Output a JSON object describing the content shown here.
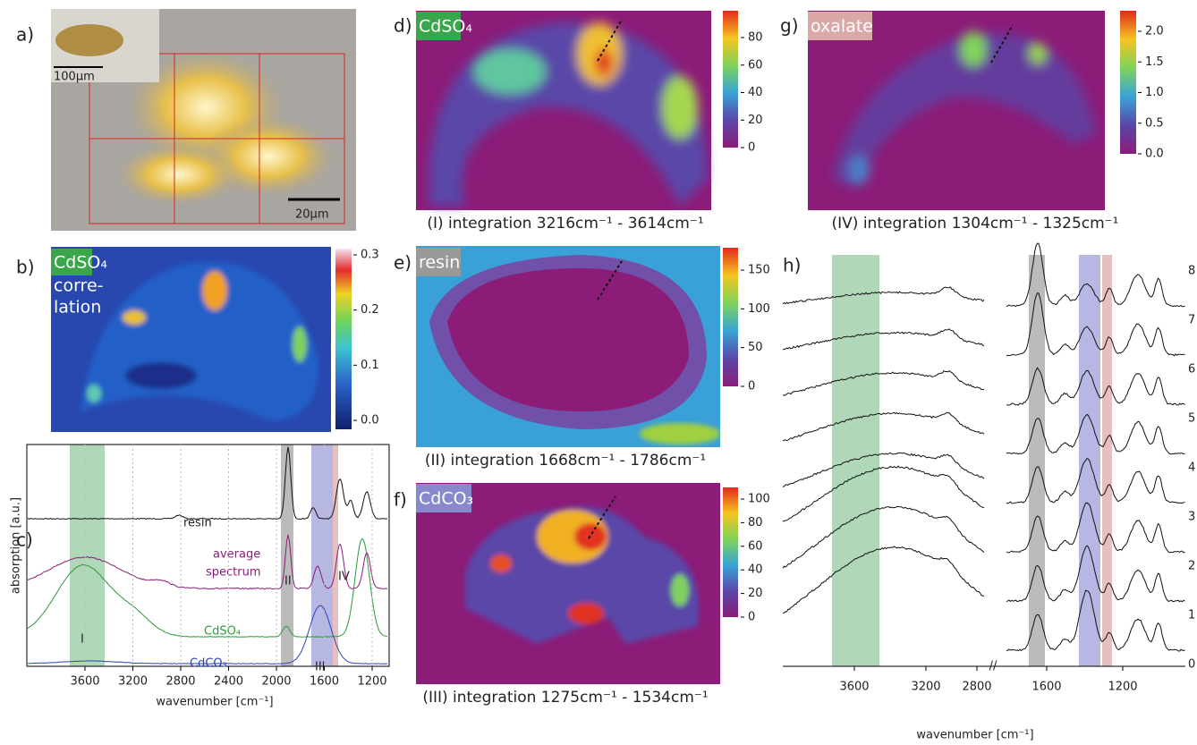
{
  "figure": {
    "a": {
      "label": "a)",
      "inset_scale": "100µm",
      "scale": "20µm"
    },
    "b": {
      "label": "b)",
      "tag": "CdSO₄",
      "note": [
        "corre-",
        "lation"
      ],
      "colorbar_ticks": [
        "0.3",
        "0.2",
        "0.1",
        "0.0"
      ]
    },
    "c": {
      "label": "c)",
      "y_label": "absorption [a.u.]",
      "x_label": "wavenumber [cm⁻¹]",
      "x_ticks": [
        "3600",
        "3200",
        "2800",
        "2400",
        "2000",
        "1600",
        "1200"
      ],
      "curves": [
        "resin",
        "average",
        "spectrum",
        "CdSO₄",
        "CdCO₃"
      ],
      "bands": [
        "I",
        "II",
        "III",
        "IV"
      ]
    },
    "d": {
      "label": "d)",
      "tag": "CdSO₄",
      "caption": "(I) integration 3216cm⁻¹ - 3614cm⁻¹",
      "colorbar_ticks": [
        "80",
        "60",
        "40",
        "20",
        "0"
      ]
    },
    "e": {
      "label": "e)",
      "tag": "resin",
      "caption": "(II) integration 1668cm⁻¹ - 1786cm⁻¹",
      "colorbar_ticks": [
        "150",
        "100",
        "50",
        "0"
      ]
    },
    "f": {
      "label": "f)",
      "tag": "CdCO₃",
      "caption": "(III) integration 1275cm⁻¹ - 1534cm⁻¹",
      "colorbar_ticks": [
        "100",
        "80",
        "60",
        "40",
        "20",
        "0"
      ]
    },
    "g": {
      "label": "g)",
      "tag": "oxalate",
      "caption": "(IV) integration 1304cm⁻¹ - 1325cm⁻¹",
      "colorbar_ticks": [
        "2.0",
        "1.5",
        "1.0",
        "0.5",
        "0.0"
      ]
    },
    "h": {
      "label": "h)",
      "x_label": "wavenumber [cm⁻¹]",
      "x_ticks": [
        "3600",
        "3200",
        "2800",
        "1600",
        "1200"
      ],
      "trace_numbers": [
        "8",
        "7",
        "6",
        "5",
        "4",
        "3",
        "2",
        "1",
        "0"
      ]
    }
  }
}
